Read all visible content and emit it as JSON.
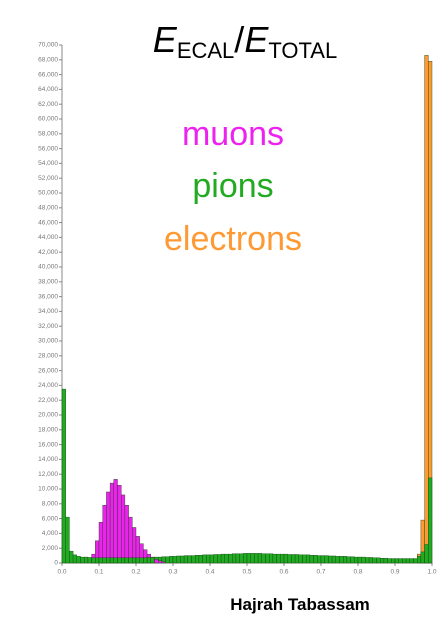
{
  "chart_data": {
    "type": "histogram",
    "title": {
      "symbol": "E",
      "numerator_sub": "ECAL",
      "slash": "/",
      "symbol2": "E",
      "denominator_sub": "TOTAL"
    },
    "credit": "Hajrah Tabassam",
    "bins": [
      0,
      0.01,
      0.02,
      0.03,
      0.04,
      0.05,
      0.06,
      0.07,
      0.08,
      0.09,
      0.1,
      0.11,
      0.12,
      0.13,
      0.14,
      0.15,
      0.16,
      0.17,
      0.18,
      0.19,
      0.2,
      0.21,
      0.22,
      0.23,
      0.24,
      0.25,
      0.26,
      0.27,
      0.28,
      0.29,
      0.3,
      0.31,
      0.32,
      0.33,
      0.34,
      0.35,
      0.36,
      0.37,
      0.38,
      0.39,
      0.4,
      0.41,
      0.42,
      0.43,
      0.44,
      0.45,
      0.46,
      0.47,
      0.48,
      0.49,
      0.5,
      0.51,
      0.52,
      0.53,
      0.54,
      0.55,
      0.56,
      0.57,
      0.58,
      0.59,
      0.6,
      0.61,
      0.62,
      0.63,
      0.64,
      0.65,
      0.66,
      0.67,
      0.68,
      0.69,
      0.7,
      0.71,
      0.72,
      0.73,
      0.74,
      0.75,
      0.76,
      0.77,
      0.78,
      0.79,
      0.8,
      0.81,
      0.82,
      0.83,
      0.84,
      0.85,
      0.86,
      0.87,
      0.88,
      0.89,
      0.9,
      0.91,
      0.92,
      0.93,
      0.94,
      0.95,
      0.96,
      0.97,
      0.98,
      0.99,
      1
    ],
    "series": [
      {
        "name": "muons",
        "color": "#ee22ee",
        "values": [
          0,
          0,
          0,
          0,
          0,
          0,
          0,
          0,
          1200,
          3000,
          5500,
          7800,
          9600,
          10800,
          11300,
          10500,
          9200,
          7800,
          6200,
          4800,
          3600,
          2600,
          1800,
          1200,
          800,
          500,
          300,
          150,
          0,
          0,
          0,
          0,
          0,
          0,
          0,
          0,
          0,
          0,
          0,
          0,
          0,
          0,
          0,
          0,
          0,
          0,
          0,
          0,
          0,
          0,
          0,
          0,
          0,
          0,
          0,
          0,
          0,
          0,
          0,
          0,
          0,
          0,
          0,
          0,
          0,
          0,
          0,
          0,
          0,
          0,
          0,
          0,
          0,
          0,
          0,
          0,
          0,
          0,
          0,
          0,
          0,
          0,
          0,
          0,
          0,
          0,
          0,
          0,
          0,
          0,
          0,
          0,
          0,
          0,
          0,
          0,
          0,
          0,
          0,
          0
        ]
      },
      {
        "name": "pions",
        "color": "#22aa22",
        "values": [
          23500,
          6200,
          1600,
          1100,
          900,
          800,
          800,
          750,
          700,
          700,
          700,
          700,
          700,
          700,
          700,
          700,
          700,
          700,
          700,
          700,
          700,
          700,
          700,
          750,
          750,
          800,
          800,
          850,
          850,
          900,
          900,
          950,
          950,
          1000,
          1000,
          1000,
          1050,
          1050,
          1100,
          1100,
          1100,
          1150,
          1150,
          1200,
          1200,
          1200,
          1250,
          1250,
          1250,
          1300,
          1300,
          1300,
          1300,
          1300,
          1250,
          1250,
          1250,
          1200,
          1200,
          1200,
          1200,
          1150,
          1150,
          1150,
          1100,
          1100,
          1100,
          1050,
          1050,
          1000,
          1000,
          1000,
          950,
          950,
          900,
          900,
          900,
          850,
          850,
          800,
          800,
          800,
          750,
          750,
          700,
          700,
          650,
          650,
          600,
          600,
          600,
          600,
          600,
          600,
          600,
          600,
          900,
          1500,
          2500,
          11500
        ]
      },
      {
        "name": "electrons",
        "color": "#ff9933",
        "values": [
          0,
          0,
          0,
          0,
          0,
          0,
          0,
          0,
          0,
          0,
          0,
          0,
          0,
          0,
          0,
          0,
          0,
          0,
          0,
          0,
          0,
          0,
          0,
          0,
          0,
          0,
          0,
          0,
          0,
          0,
          0,
          0,
          0,
          0,
          0,
          0,
          0,
          0,
          0,
          0,
          0,
          0,
          0,
          0,
          0,
          0,
          0,
          0,
          0,
          0,
          0,
          0,
          0,
          0,
          0,
          0,
          0,
          0,
          0,
          0,
          0,
          0,
          0,
          0,
          0,
          0,
          0,
          0,
          0,
          0,
          0,
          0,
          0,
          0,
          0,
          0,
          0,
          0,
          0,
          0,
          0,
          0,
          0,
          0,
          0,
          0,
          0,
          0,
          0,
          0,
          0,
          0,
          0,
          0,
          0,
          0,
          1200,
          5800,
          68600,
          67800
        ]
      }
    ],
    "xlim": [
      0,
      1
    ],
    "xticks": [
      {
        "value": 0,
        "label": "0.0"
      },
      0.1,
      0.2,
      0.3,
      0.4,
      0.5,
      0.6,
      0.7,
      0.8,
      0.9,
      {
        "value": 1,
        "label": "1.0"
      }
    ],
    "ylim": [
      0,
      70000
    ],
    "yticks": [
      0,
      {
        "value": 2000,
        "label": "2,000"
      },
      {
        "value": 4000,
        "label": "4,000"
      },
      {
        "value": 6000,
        "label": "6,000"
      },
      {
        "value": 8000,
        "label": "8,000"
      },
      {
        "value": 10000,
        "label": "10,000"
      },
      {
        "value": 12000,
        "label": "12,000"
      },
      {
        "value": 14000,
        "label": "14,000"
      },
      {
        "value": 16000,
        "label": "16,000"
      },
      {
        "value": 18000,
        "label": "18,000"
      },
      {
        "value": 20000,
        "label": "20,000"
      },
      {
        "value": 22000,
        "label": "22,000"
      },
      {
        "value": 24000,
        "label": "24,000"
      },
      {
        "value": 26000,
        "label": "26,000"
      },
      {
        "value": 28000,
        "label": "28,000"
      },
      {
        "value": 30000,
        "label": "30,000"
      },
      {
        "value": 32000,
        "label": "32,000"
      },
      {
        "value": 34000,
        "label": "34,000"
      },
      {
        "value": 36000,
        "label": "36,000"
      },
      {
        "value": 38000,
        "label": "38,000"
      },
      {
        "value": 40000,
        "label": "40,000"
      },
      {
        "value": 42000,
        "label": "42,000"
      },
      {
        "value": 44000,
        "label": "44,000"
      },
      {
        "value": 46000,
        "label": "46,000"
      },
      {
        "value": 48000,
        "label": "48,000"
      },
      {
        "value": 50000,
        "label": "50,000"
      },
      {
        "value": 52000,
        "label": "52,000"
      },
      {
        "value": 54000,
        "label": "54,000"
      },
      {
        "value": 56000,
        "label": "56,000"
      },
      {
        "value": 58000,
        "label": "58,000"
      },
      {
        "value": 60000,
        "label": "60,000"
      },
      {
        "value": 62000,
        "label": "62,000"
      },
      {
        "value": 64000,
        "label": "64,000"
      },
      {
        "value": 66000,
        "label": "66,000"
      },
      {
        "value": 68000,
        "label": "68,000"
      },
      {
        "value": 70000,
        "label": "70,000"
      }
    ],
    "grid": false
  }
}
